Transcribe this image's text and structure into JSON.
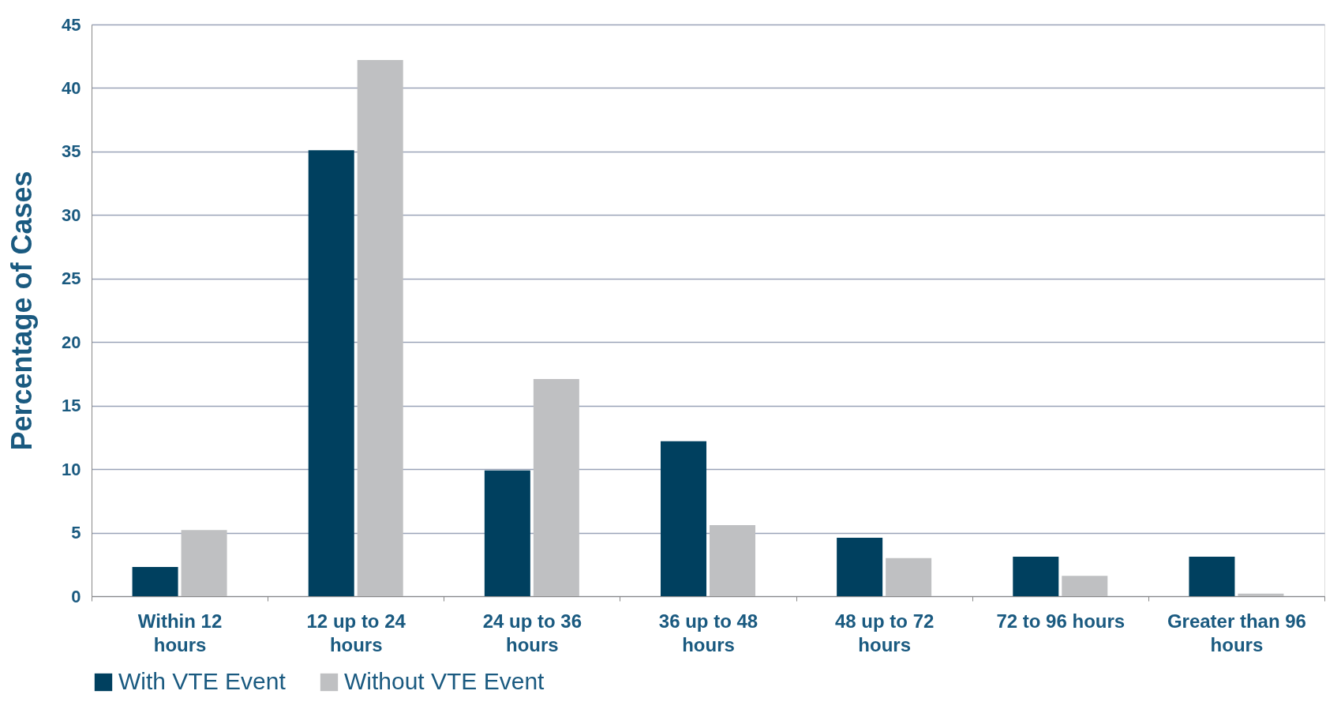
{
  "chart_data": {
    "type": "bar",
    "ylabel": "Percentage of Cases",
    "categories": [
      "Within 12 hours",
      "12 up to 24 hours",
      "24 up to 36 hours",
      "36 up to 48 hours",
      "48 up to 72 hours",
      "72 to 96 hours",
      "Greater than 96 hours"
    ],
    "series": [
      {
        "name": "With VTE Event",
        "color": "#00405f",
        "values": [
          2.3,
          35.1,
          9.9,
          12.2,
          4.6,
          3.1,
          3.1
        ]
      },
      {
        "name": "Without VTE Event",
        "color": "#bfc0c2",
        "values": [
          5.2,
          42.2,
          17.1,
          5.6,
          3.0,
          1.6,
          0.2
        ]
      }
    ],
    "ylim": [
      0,
      45
    ],
    "yticks": [
      0,
      5,
      10,
      15,
      20,
      25,
      30,
      35,
      40,
      45
    ],
    "grid": "y",
    "legend": "bottom"
  }
}
